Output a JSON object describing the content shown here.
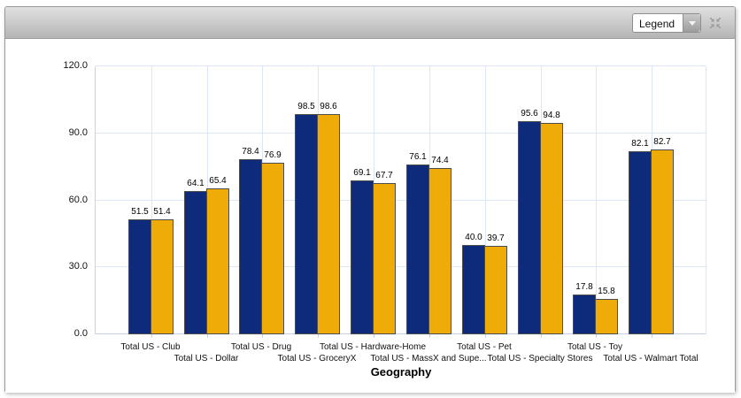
{
  "header": {
    "legend_dropdown": {
      "value": "Legend"
    }
  },
  "chart_data": {
    "type": "bar",
    "title": "",
    "xlabel": "Geography",
    "ylabel": "",
    "ylim": [
      0,
      120
    ],
    "yticks": [
      0,
      30,
      60,
      90,
      120
    ],
    "ytick_labels": [
      "0.0",
      "30.0",
      "60.0",
      "90.0",
      "120.0"
    ],
    "grid": "on",
    "legend_position": "collapsed-in-toolbar-dropdown",
    "value_label_decimals": 1,
    "categories": [
      "Total US - Club",
      "Total US - Dollar",
      "Total US - Drug",
      "Total US - GroceryX",
      "Total US - Hardware-Home",
      "Total US - MassX and Supe...",
      "Total US - Pet",
      "Total US - Specialty Stores",
      "Total US - Toy",
      "Total US - Walmart Total"
    ],
    "series": [
      {
        "name": "",
        "color": "#0e2b7b",
        "values": [
          51.5,
          64.1,
          78.4,
          98.5,
          69.1,
          76.1,
          40.0,
          95.6,
          17.8,
          82.1
        ]
      },
      {
        "name": "",
        "color": "#efac08",
        "values": [
          51.4,
          65.4,
          76.9,
          98.6,
          67.7,
          74.4,
          39.7,
          94.8,
          15.8,
          82.7
        ]
      }
    ]
  },
  "colors": {
    "bar_navy": "#0e2b7b",
    "bar_gold": "#efac08",
    "bar_border": "#4d4d4d",
    "gridline": "#dce7f5",
    "axis_line": "#c3d2e6"
  }
}
